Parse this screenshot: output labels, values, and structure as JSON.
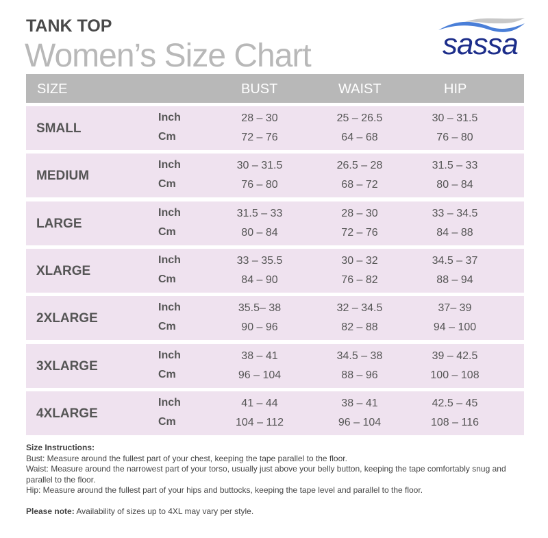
{
  "kicker": "TANK TOP",
  "title": "Women’s Size Chart",
  "logo": {
    "text": "sassa",
    "colors": {
      "wordmark": "#1c2d8a",
      "wave_blue": "#4a7fd8",
      "wave_gray": "#c8c8c8"
    }
  },
  "header": {
    "size": "SIZE",
    "bust": "BUST",
    "waist": "WAIST",
    "hip": "HIP"
  },
  "units": {
    "inch": "Inch",
    "cm": "Cm"
  },
  "rows": [
    {
      "size": "SMALL",
      "inch": [
        "28 – 30",
        "25 – 26.5",
        "30 – 31.5"
      ],
      "cm": [
        "72 – 76",
        "64 – 68",
        "76 – 80"
      ]
    },
    {
      "size": "MEDIUM",
      "inch": [
        "30 – 31.5",
        "26.5 – 28",
        "31.5 – 33"
      ],
      "cm": [
        "76 – 80",
        "68 – 72",
        "80 – 84"
      ]
    },
    {
      "size": "LARGE",
      "inch": [
        "31.5 – 33",
        "28 – 30",
        "33 – 34.5"
      ],
      "cm": [
        "80 – 84",
        "72 – 76",
        "84 – 88"
      ]
    },
    {
      "size": "XLARGE",
      "inch": [
        "33 – 35.5",
        "30 – 32",
        "34.5 – 37"
      ],
      "cm": [
        "84 – 90",
        "76 – 82",
        "88 – 94"
      ]
    },
    {
      "size": "2XLARGE",
      "inch": [
        "35.5– 38",
        "32 – 34.5",
        "37– 39"
      ],
      "cm": [
        "90 – 96",
        "82 – 88",
        "94 – 100"
      ]
    },
    {
      "size": "3XLARGE",
      "inch": [
        "38 – 41",
        "34.5 – 38",
        "39 – 42.5"
      ],
      "cm": [
        "96 – 104",
        "88 – 96",
        "100 – 108"
      ]
    },
    {
      "size": "4XLARGE",
      "inch": [
        "41 – 44",
        "38 – 41",
        "42.5 – 45"
      ],
      "cm": [
        "104 – 112",
        "96 – 104",
        "108 – 116"
      ]
    }
  ],
  "instructions": {
    "heading": "Size Instructions:",
    "bust": "Bust: Measure around the fullest part of your chest, keeping the tape parallel to the floor.",
    "waist": "Waist: Measure around the narrowest part of your torso, usually just above your belly button, keeping the tape comfortably snug and parallel to the floor.",
    "hip": "Hip: Measure around the fullest part of your hips and buttocks, keeping the tape level and parallel to the floor.",
    "note_label": "Please note:",
    "note": " Availability of sizes up to 4XL may vary per style."
  }
}
